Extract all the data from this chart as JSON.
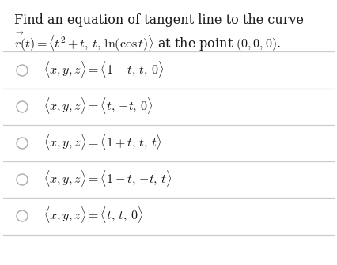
{
  "bg_color": "#ffffff",
  "text_color": "#1a1a1a",
  "line_color": "#cccccc",
  "title_line1": "Find an equation of tangent line to the curve",
  "title_line2_plain": "$r(t) = \\langle t^2 + t,\\, t,\\, \\ln(\\cos t)\\rangle$ at the point $(0, 0, 0)$.",
  "arrow_text": "$\\rightarrow$",
  "options": [
    "$\\langle x, y, z\\rangle = \\langle 1 - t,\\, t,\\, 0\\rangle$",
    "$\\langle x, y, z\\rangle = \\langle t,\\, {-t},\\, 0\\rangle$",
    "$\\langle x, y, z\\rangle = \\langle 1 + t,\\, t,\\, t\\rangle$",
    "$\\langle x, y, z\\rangle = \\langle 1 - t,\\, {-t},\\, t\\rangle$",
    "$\\langle x, y, z\\rangle = \\langle t,\\, t,\\, 0\\rangle$"
  ],
  "figsize": [
    4.26,
    3.35
  ],
  "dpi": 100
}
